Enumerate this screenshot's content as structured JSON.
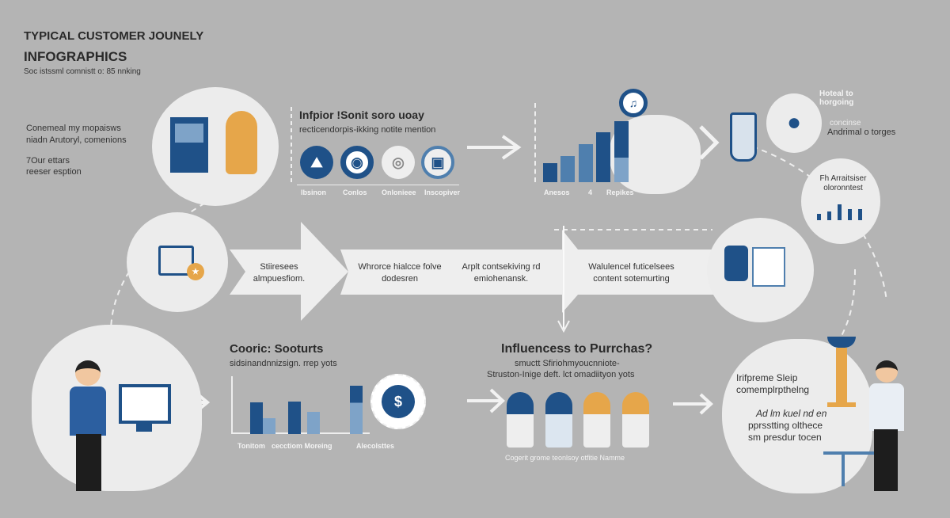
{
  "title": {
    "line1": "TYPICAL CUSTOMER JOUNELY",
    "line2": "INFOGRAPHICS",
    "subtitle": "Soc istssml comnistt o: 85 nnking"
  },
  "left_note": {
    "line1": "Conemeal my mopaisws",
    "line2": "niadn Arutoryl, comenions",
    "line3": "7Our ettars",
    "line4": "reeser esption"
  },
  "awareness": {
    "heading": "Infpior !Sonit soro uoay",
    "sub": "recticendorpis-ikking notite mention",
    "icons": [
      {
        "icon": "mountain-icon",
        "label": "Ibsinon"
      },
      {
        "icon": "eye-icon",
        "label": "Conlos"
      },
      {
        "icon": "disc-icon",
        "label": "Onlonieee"
      },
      {
        "icon": "device-icon",
        "label": "Inscopiver"
      }
    ]
  },
  "growth_chart": {
    "labels": [
      "Anesos",
      "4",
      "Repikes"
    ],
    "icon": "music-icon"
  },
  "top_right": {
    "note1": "Hoteal to horgoing",
    "note2a": "concinse",
    "note2b": "Andrimal o torges",
    "circle_line1": "Fh Arraitsiser",
    "circle_line2": "oloronntest"
  },
  "band": {
    "steps": [
      "Stiiresees almpuesfiom.",
      "Whrorce hialcce folve dodesren",
      "Arplt contsekiving rd emiohenansk.",
      "Walulencel futicelsees content sotemurting"
    ]
  },
  "consideration": {
    "heading": "Cooric: Sooturts",
    "sub": "sidsinandnnizsign. rrep yots",
    "labels": [
      "Tonitom",
      "cecctiom Moreing",
      "Alecolsttes"
    ],
    "icon": "dollar-icon"
  },
  "purchase": {
    "heading": "Influencess to Purrchas?",
    "sub1": "smuctt Sfiriohmyoucnniote-",
    "sub2": "Struston-Inige deft. lct omadiityon yots",
    "caption": "Cogerit grome teonlsoy otfitie Namme"
  },
  "loyalty": {
    "line1": "Irifpreme Sleip",
    "line2": "comemplrpthelng",
    "line3": "Ad lm kuel nd en",
    "line4": "pprsstting olthece",
    "line5": "sm presdur tocen"
  },
  "colors": {
    "background": "#b4b4b4",
    "navy": "#1f5188",
    "mid_blue": "#4f7fae",
    "light_blue": "#7ea3c8",
    "orange": "#e6a64a",
    "panel": "#ececec"
  }
}
